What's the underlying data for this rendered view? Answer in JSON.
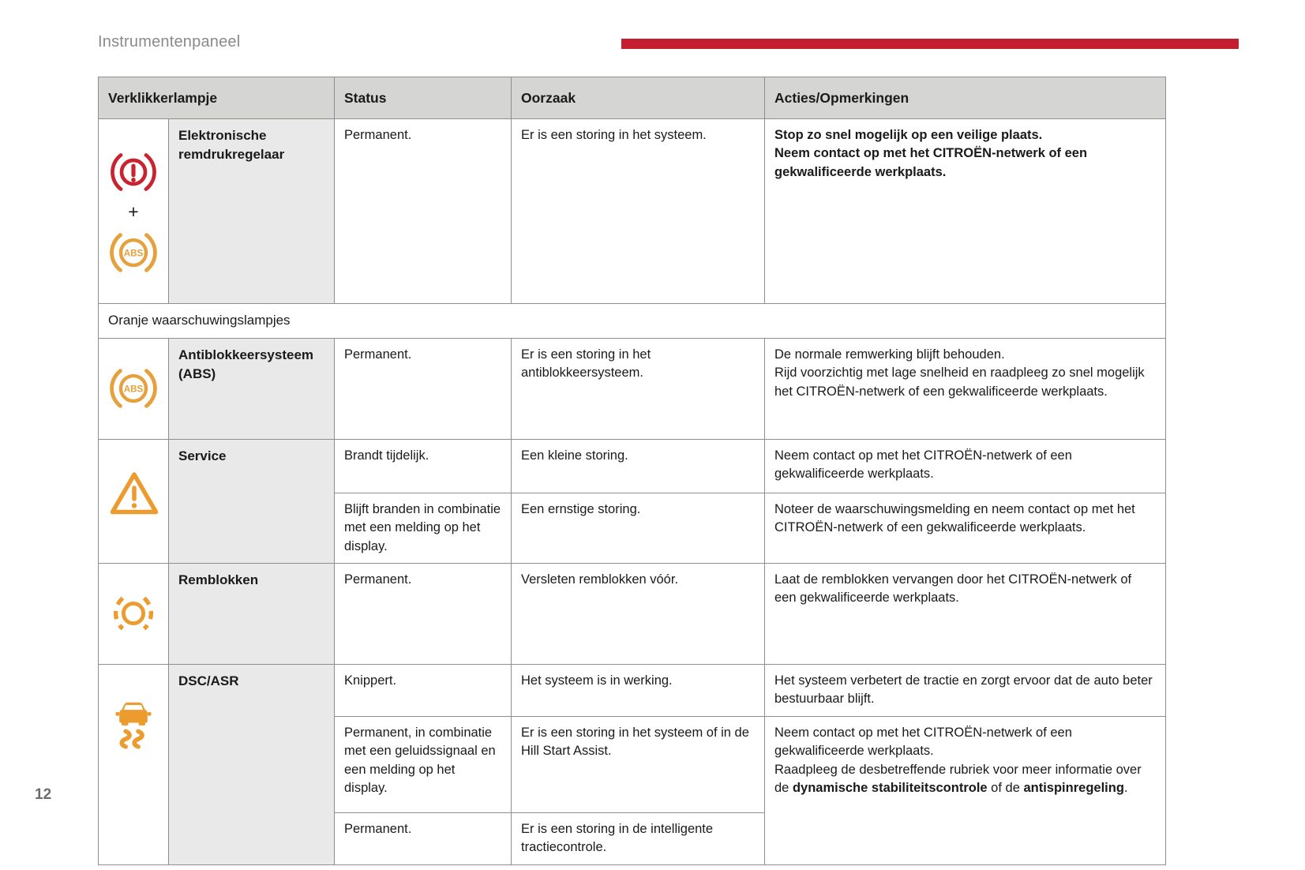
{
  "page": {
    "title": "Instrumentenpaneel",
    "page_number": "12"
  },
  "colors": {
    "accent_red": "#c41e31",
    "icon_red": "#c8232f",
    "icon_orange": "#e6a03c",
    "icon_orange_deep": "#ec9c2e"
  },
  "icons": {
    "brake_warning": "brake-warning-icon",
    "abs": "abs-icon",
    "abs_label": "ABS",
    "plus": "+",
    "service": "warning-triangle-icon",
    "brake_pads": "brake-pads-wear-icon",
    "dsc": "car-skid-icon"
  },
  "table": {
    "headers": [
      "Verklikkerlampje",
      "Status",
      "Oorzaak",
      "Acties/Opmerkingen"
    ],
    "section_label": "Oranje waarschuwingslampjes",
    "rows": {
      "brake": {
        "name": "Elektronische\nremdrukregelaar",
        "status": "Permanent.",
        "cause": "Er is een storing in het systeem.",
        "action": "Stop zo snel mogelijk op een veilige plaats.\nNeem contact op met het CITROËN-netwerk of een gekwalificeerde werkplaats."
      },
      "abs": {
        "name": "Antiblokkeersysteem\n(ABS)",
        "status": "Permanent.",
        "cause": "Er is een storing in het antiblokkeersysteem.",
        "action": "De normale remwerking blijft behouden.\nRijd voorzichtig met lage snelheid en raadpleeg zo snel mogelijk het CITROËN-netwerk of een gekwalificeerde werkplaats."
      },
      "service": {
        "name": "Service",
        "sub": [
          {
            "status": "Brandt tijdelijk.",
            "cause": "Een kleine storing.",
            "action": "Neem contact op met het CITROËN-netwerk of een gekwalificeerde werkplaats."
          },
          {
            "status": "Blijft branden in combinatie met een melding op het display.",
            "cause": "Een ernstige storing.",
            "action": "Noteer de waarschuwingsmelding en neem contact op met het CITROËN-netwerk of een gekwalificeerde werkplaats."
          }
        ]
      },
      "brake_pads": {
        "name": "Remblokken",
        "status": "Permanent.",
        "cause": "Versleten remblokken vóór.",
        "action": "Laat de remblokken vervangen door het CITROËN-netwerk of een gekwalificeerde werkplaats."
      },
      "dsc": {
        "name": "DSC/ASR",
        "sub": [
          {
            "status": "Knippert.",
            "cause": "Het systeem is in werking.",
            "action": "Het systeem verbetert de tractie en zorgt ervoor dat de auto beter bestuurbaar blijft."
          },
          {
            "status": "Permanent, in combinatie met een geluidssignaal en een melding op het display.",
            "cause": "Er is een storing in het systeem of in de Hill Start Assist.",
            "action_rich": [
              {
                "t": "Neem contact op met het CITROËN-netwerk of een gekwalificeerde werkplaats.\nRaadpleeg de desbetreffende rubriek voor meer informatie over de ",
                "b": false
              },
              {
                "t": "dynamische stabiliteitscontrole",
                "b": true
              },
              {
                "t": " of de ",
                "b": false
              },
              {
                "t": "antispinregeling",
                "b": true
              },
              {
                "t": ".",
                "b": false
              }
            ]
          },
          {
            "status": "Permanent.",
            "cause": "Er is een storing in de intelligente tractiecontrole."
          }
        ]
      }
    }
  }
}
